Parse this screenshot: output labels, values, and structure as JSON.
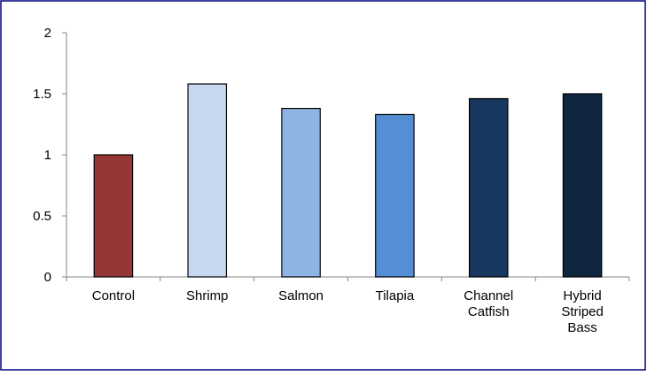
{
  "chart_data": {
    "type": "bar",
    "title": "",
    "xlabel": "",
    "ylabel": "",
    "categories": [
      [
        "Control"
      ],
      [
        "Shrimp"
      ],
      [
        "Salmon"
      ],
      [
        "Tilapia"
      ],
      [
        "Channel",
        "Catfish"
      ],
      [
        "Hybrid",
        "Striped",
        "Bass"
      ]
    ],
    "values": [
      1.0,
      1.58,
      1.38,
      1.33,
      1.46,
      1.5
    ],
    "colors": [
      "#953735",
      "#C6D9F1",
      "#8EB4E3",
      "#558ED5",
      "#17375E",
      "#10253F"
    ],
    "ylim": [
      0,
      2
    ],
    "yticks": [
      0,
      0.5,
      1,
      1.5,
      2
    ],
    "ytick_labels": [
      "0",
      "0.5",
      "1",
      "1.5",
      "2"
    ],
    "grid": false,
    "legend": "none",
    "border_color": "#000080"
  }
}
